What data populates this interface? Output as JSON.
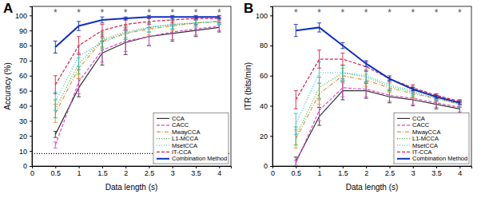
{
  "chart_data": [
    {
      "type": "line",
      "title": "A",
      "x_label": "Data length (s)",
      "y_label": "Accuracy (%)",
      "x": [
        0.5,
        1,
        1.5,
        2,
        2.5,
        3,
        3.5,
        4
      ],
      "xlim": [
        0,
        4.25
      ],
      "xticks": [
        0,
        0.5,
        1,
        1.5,
        2,
        2.5,
        3,
        3.5,
        4
      ],
      "ylim": [
        0,
        106
      ],
      "yticks": [
        0,
        10,
        20,
        30,
        40,
        50,
        60,
        70,
        80,
        90,
        100
      ],
      "legend": "lower right",
      "series": [
        {
          "name": "CCA",
          "color": "#333333",
          "line_style": "solid",
          "values": [
            21,
            52,
            75,
            82,
            86,
            88,
            90,
            92
          ],
          "errors": [
            2,
            6,
            8,
            8,
            6,
            5,
            4,
            3
          ]
        },
        {
          "name": "CACC",
          "color": "#d84fc4",
          "line_style": "dashed",
          "values": [
            14,
            56,
            77,
            83,
            86,
            89,
            91,
            93
          ],
          "errors": [
            2,
            8,
            8,
            7,
            6,
            5,
            4,
            3
          ]
        },
        {
          "name": "MwayCCA",
          "color": "#e0963c",
          "line_style": "dashdot",
          "values": [
            35,
            65,
            83,
            88,
            91,
            93,
            95,
            96
          ],
          "errors": [
            6,
            7,
            5,
            4,
            4,
            3,
            3,
            2
          ]
        },
        {
          "name": "L1-MCCA",
          "color": "#3fae4a",
          "line_style": "dotted",
          "values": [
            38,
            68,
            84,
            89,
            92,
            94,
            95,
            96
          ],
          "errors": [
            6,
            7,
            5,
            4,
            3,
            3,
            2,
            2
          ]
        },
        {
          "name": "MsetCCA",
          "color": "#2fbfd0",
          "line_style": "dotted",
          "values": [
            43,
            73,
            82,
            88,
            92,
            94,
            95,
            96
          ],
          "errors": [
            6,
            7,
            5,
            4,
            3,
            3,
            2,
            2
          ]
        },
        {
          "name": "IT-CCA",
          "color": "#e0204a",
          "line_style": "dashed",
          "values": [
            54,
            80,
            90,
            94,
            96,
            97,
            98,
            98
          ],
          "errors": [
            6,
            6,
            4,
            3,
            2,
            2,
            1,
            1
          ]
        },
        {
          "name": "Combination Method",
          "color": "#1030c0",
          "line_style": "solid",
          "values": [
            79,
            93,
            97,
            98,
            99,
            99,
            99,
            99
          ],
          "errors": [
            4,
            3,
            2,
            1,
            1,
            1,
            1,
            1
          ]
        }
      ],
      "reference_lines": [
        {
          "value": 8.33,
          "line_style": "dotted",
          "color": "#000000"
        }
      ],
      "annotations": [
        {
          "x": 0.5,
          "y": 103,
          "text": "*"
        },
        {
          "x": 1,
          "y": 103,
          "text": "*"
        },
        {
          "x": 1.5,
          "y": 103,
          "text": "*"
        },
        {
          "x": 2,
          "y": 103,
          "text": "*"
        },
        {
          "x": 2.5,
          "y": 103,
          "text": "*"
        },
        {
          "x": 3,
          "y": 103,
          "text": "*"
        },
        {
          "x": 3.5,
          "y": 103,
          "text": "*"
        },
        {
          "x": 4,
          "y": 103,
          "text": "*"
        }
      ]
    },
    {
      "type": "line",
      "title": "B",
      "x_label": "Data length (s)",
      "y_label": "ITR (bits/min)",
      "x": [
        0.5,
        1,
        1.5,
        2,
        2.5,
        3,
        3.5,
        4
      ],
      "xlim": [
        0,
        4.25
      ],
      "xticks": [
        0,
        0.5,
        1,
        1.5,
        2,
        2.5,
        3,
        3.5,
        4
      ],
      "ylim": [
        0,
        106
      ],
      "yticks": [
        0,
        20,
        40,
        60,
        80,
        100
      ],
      "legend": "lower right",
      "series": [
        {
          "name": "CCA",
          "color": "#333333",
          "line_style": "solid",
          "values": [
            3,
            33,
            50,
            50,
            46,
            44,
            41,
            38
          ],
          "errors": [
            3,
            6,
            6,
            5,
            4,
            4,
            3,
            3
          ]
        },
        {
          "name": "CACC",
          "color": "#d84fc4",
          "line_style": "dashed",
          "values": [
            2,
            37,
            52,
            51,
            47,
            45,
            42,
            39
          ],
          "errors": [
            2,
            7,
            6,
            5,
            4,
            4,
            3,
            3
          ]
        },
        {
          "name": "MwayCCA",
          "color": "#e0963c",
          "line_style": "dashdot",
          "values": [
            18,
            48,
            60,
            57,
            52,
            48,
            45,
            41
          ],
          "errors": [
            6,
            7,
            5,
            4,
            3,
            3,
            2,
            2
          ]
        },
        {
          "name": "L1-MCCA",
          "color": "#3fae4a",
          "line_style": "dotted",
          "values": [
            20,
            52,
            62,
            59,
            53,
            49,
            45,
            41
          ],
          "errors": [
            6,
            7,
            5,
            4,
            3,
            3,
            2,
            2
          ]
        },
        {
          "name": "MsetCCA",
          "color": "#2fbfd0",
          "line_style": "dotted",
          "values": [
            28,
            62,
            62,
            60,
            54,
            50,
            46,
            42
          ],
          "errors": [
            7,
            7,
            5,
            4,
            3,
            3,
            2,
            2
          ]
        },
        {
          "name": "IT-CCA",
          "color": "#e0204a",
          "line_style": "dashed",
          "values": [
            44,
            71,
            71,
            66,
            58,
            52,
            47,
            43
          ],
          "errors": [
            6,
            6,
            4,
            3,
            2,
            2,
            1,
            1
          ]
        },
        {
          "name": "Combination Method",
          "color": "#1030c0",
          "line_style": "solid",
          "values": [
            90,
            92,
            80,
            68,
            58,
            51,
            46,
            42
          ],
          "errors": [
            4,
            3,
            2,
            2,
            1,
            1,
            1,
            1
          ]
        }
      ],
      "annotations": [
        {
          "x": 0.5,
          "y": 103,
          "text": "*"
        },
        {
          "x": 1,
          "y": 103,
          "text": "*"
        },
        {
          "x": 1.5,
          "y": 103,
          "text": "*"
        },
        {
          "x": 2,
          "y": 103,
          "text": "*"
        },
        {
          "x": 2.5,
          "y": 103,
          "text": "*"
        },
        {
          "x": 3,
          "y": 103,
          "text": "*"
        },
        {
          "x": 3.5,
          "y": 103,
          "text": "*"
        },
        {
          "x": 4,
          "y": 103,
          "text": "*"
        }
      ]
    }
  ]
}
